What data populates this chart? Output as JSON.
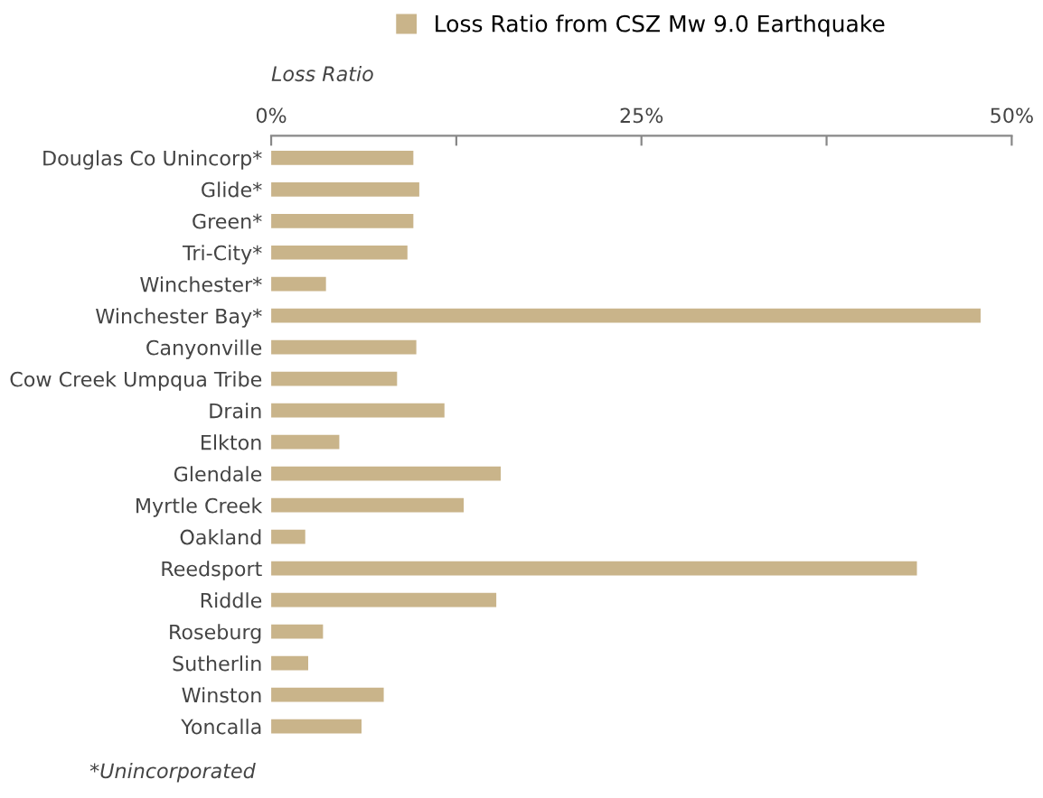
{
  "chart_data": {
    "type": "bar",
    "orientation": "horizontal",
    "categories": [
      "Douglas Co Unincorp*",
      "Glide*",
      "Green*",
      "Tri-City*",
      "Winchester*",
      "Winchester Bay*",
      "Canyonville",
      "Cow Creek Umpqua Tribe",
      "Drain",
      "Elkton",
      "Glendale",
      "Myrtle Creek",
      "Oakland",
      "Reedsport",
      "Riddle",
      "Roseburg",
      "Sutherlin",
      "Winston",
      "Yoncalla"
    ],
    "series": [
      {
        "name": "Loss Ratio from CSZ Mw 9.0 Earthquake",
        "color": "#c9b48a",
        "values": [
          9.6,
          10.0,
          9.6,
          9.2,
          3.7,
          47.9,
          9.8,
          8.5,
          11.7,
          4.6,
          15.5,
          13.0,
          2.3,
          43.6,
          15.2,
          3.5,
          2.5,
          7.6,
          6.1
        ]
      }
    ],
    "xlabel": "Loss Ratio",
    "xlim": [
      0,
      50
    ],
    "xticks": [
      {
        "value": 0,
        "label": "0%"
      },
      {
        "value": 12.5,
        "label": null
      },
      {
        "value": 25,
        "label": "25%"
      },
      {
        "value": 37.5,
        "label": null
      },
      {
        "value": 50,
        "label": "50%"
      }
    ],
    "legend": "top",
    "grid": false,
    "annotations": [
      "*Unincorporated"
    ]
  }
}
